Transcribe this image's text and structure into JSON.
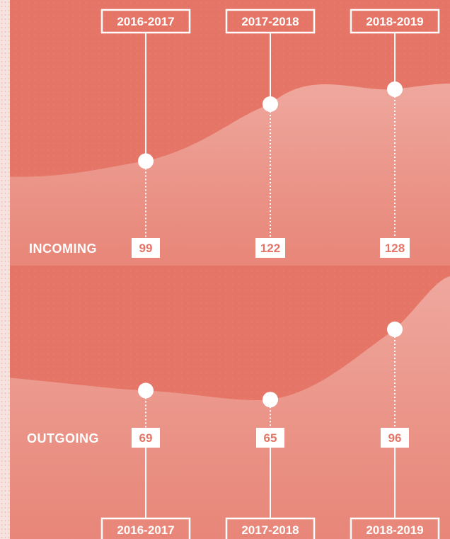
{
  "chart_data": {
    "type": "area",
    "categories": [
      "2016-2017",
      "2017-2018",
      "2018-2019"
    ],
    "series": [
      {
        "name": "INCOMING",
        "values": [
          99,
          122,
          128
        ]
      },
      {
        "name": "OUTGOING",
        "values": [
          69,
          65,
          96
        ]
      }
    ],
    "title": "",
    "xlabel": "",
    "ylabel": "",
    "grid": false,
    "legend": "none"
  },
  "colors": {
    "background": "#e57566",
    "background_dark": "#e06e5f",
    "area": "#eea196",
    "value_text": "#e57566",
    "line": "#ffffff",
    "left_strip": "#f6e2df"
  }
}
